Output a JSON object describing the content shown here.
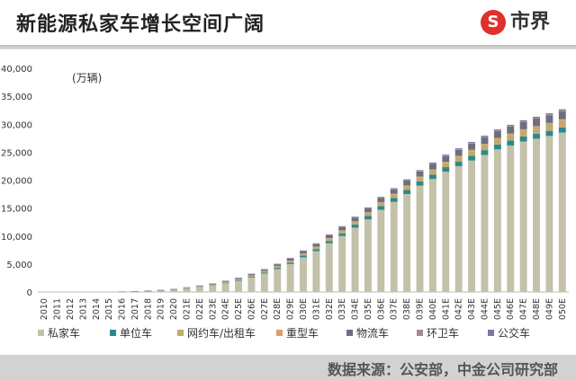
{
  "header": {
    "title": "新能源私家车增长空间广阔",
    "logo_text": "市界",
    "logo_mark": "S",
    "logo_icon": "shishi-logo-icon"
  },
  "footer": {
    "source": "数据来源：公安部，中金公司研究部"
  },
  "colors": {
    "私家车": "#c3c1a9",
    "单位车": "#2a8a8b",
    "网约车/出租车": "#c4a86f",
    "重型车": "#d7a167",
    "物流车": "#6d6f80",
    "环卫车": "#a58a8e",
    "公交车": "#7b76a4"
  },
  "chart_data": {
    "type": "bar",
    "stacked": true,
    "unit_label": "(万辆)",
    "ylim": [
      0,
      40000
    ],
    "yticks": [
      "0",
      "5,000",
      "10,000",
      "15,000",
      "20,000",
      "25,000",
      "30,000",
      "35,000",
      "40,000"
    ],
    "grid": false,
    "legend_position": "bottom",
    "categories": [
      "2010",
      "2011",
      "2012",
      "2013",
      "2014",
      "2015",
      "2016",
      "2017",
      "2018",
      "2019",
      "2020",
      "2021E",
      "2022E",
      "2023E",
      "2024E",
      "2025E",
      "2026E",
      "2027E",
      "2028E",
      "2029E",
      "2030E",
      "2031E",
      "2032E",
      "2033E",
      "2034E",
      "2035E",
      "2036E",
      "2037E",
      "2038E",
      "2039E",
      "2040E",
      "2041E",
      "2042E",
      "2043E",
      "2044E",
      "2045E",
      "2046E",
      "2047E",
      "2048E",
      "2049E",
      "2050E"
    ],
    "series": [
      {
        "name": "私家车",
        "values": [
          0,
          0,
          0,
          0,
          0,
          0,
          40,
          80,
          150,
          250,
          380,
          600,
          850,
          1150,
          1550,
          2000,
          2600,
          3300,
          4100,
          5000,
          6200,
          7300,
          8700,
          10000,
          11500,
          13000,
          14700,
          16100,
          17500,
          19000,
          20200,
          21500,
          22500,
          23500,
          24500,
          25500,
          26200,
          26900,
          27400,
          27900,
          28500
        ]
      },
      {
        "name": "单位车",
        "values": [
          0,
          0,
          0,
          0,
          0,
          0,
          5,
          10,
          15,
          25,
          35,
          50,
          65,
          80,
          100,
          120,
          150,
          180,
          220,
          260,
          300,
          360,
          420,
          480,
          540,
          600,
          650,
          700,
          750,
          780,
          800,
          820,
          840,
          850,
          860,
          870,
          880,
          890,
          900,
          910,
          920
        ]
      },
      {
        "name": "网约车/出租车",
        "values": [
          0,
          0,
          0,
          0,
          0,
          0,
          5,
          10,
          15,
          20,
          30,
          50,
          70,
          90,
          110,
          140,
          170,
          200,
          240,
          280,
          320,
          360,
          400,
          440,
          480,
          520,
          560,
          600,
          640,
          680,
          720,
          760,
          800,
          850,
          900,
          950,
          1000,
          1050,
          1100,
          1150,
          1200
        ]
      },
      {
        "name": "重型车",
        "values": [
          0,
          0,
          0,
          0,
          0,
          0,
          0,
          0,
          5,
          5,
          10,
          10,
          15,
          20,
          25,
          30,
          40,
          50,
          60,
          70,
          80,
          90,
          100,
          110,
          120,
          130,
          140,
          150,
          160,
          170,
          180,
          190,
          200,
          210,
          220,
          230,
          240,
          250,
          260,
          270,
          280
        ]
      },
      {
        "name": "物流车",
        "values": [
          0,
          0,
          0,
          0,
          0,
          0,
          5,
          10,
          20,
          30,
          40,
          60,
          80,
          100,
          130,
          160,
          200,
          240,
          290,
          340,
          390,
          440,
          500,
          560,
          620,
          680,
          740,
          800,
          860,
          920,
          980,
          1030,
          1080,
          1130,
          1180,
          1220,
          1260,
          1300,
          1340,
          1380,
          1420
        ]
      },
      {
        "name": "环卫车",
        "values": [
          0,
          0,
          0,
          0,
          0,
          0,
          0,
          0,
          5,
          5,
          5,
          10,
          10,
          15,
          15,
          20,
          25,
          30,
          35,
          40,
          45,
          50,
          55,
          60,
          65,
          70,
          75,
          80,
          85,
          90,
          95,
          100,
          105,
          110,
          115,
          120,
          125,
          130,
          135,
          140,
          145
        ]
      },
      {
        "name": "公交车",
        "values": [
          0,
          0,
          0,
          0,
          0,
          0,
          30,
          40,
          45,
          50,
          55,
          60,
          65,
          70,
          75,
          80,
          85,
          90,
          95,
          100,
          105,
          110,
          115,
          120,
          125,
          130,
          135,
          140,
          145,
          150,
          155,
          160,
          165,
          170,
          175,
          180,
          185,
          190,
          195,
          200,
          205
        ]
      }
    ]
  }
}
